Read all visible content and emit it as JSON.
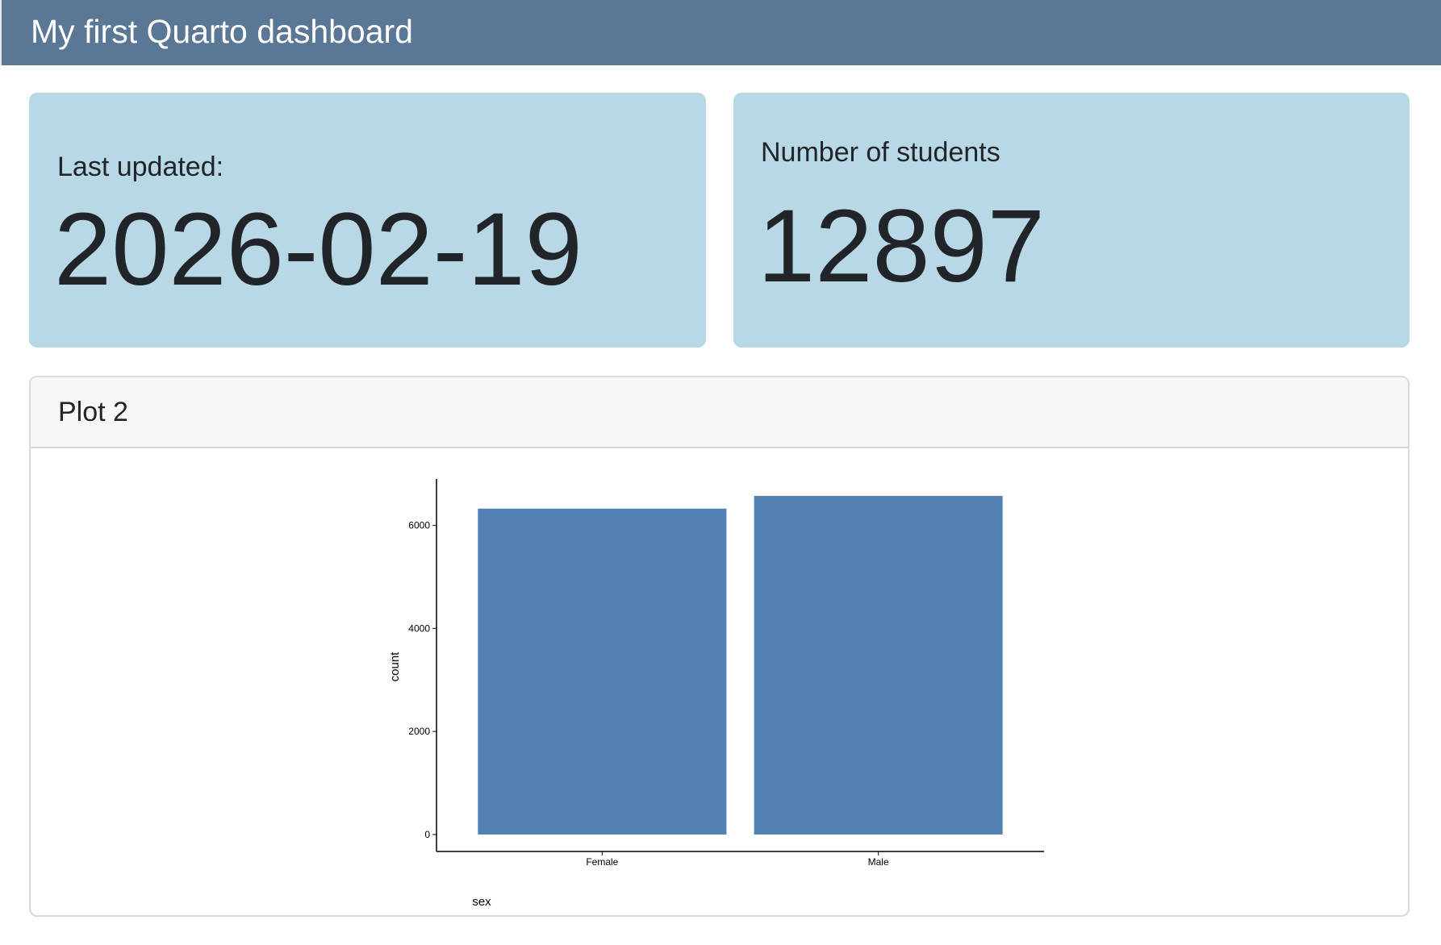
{
  "header": {
    "title": "My first Quarto dashboard"
  },
  "value_boxes": [
    {
      "label": "Last updated:",
      "value": "2026-02-19"
    },
    {
      "label": "Number of students",
      "value": 12897
    }
  ],
  "card": {
    "title": "Plot 2"
  },
  "chart_data": {
    "type": "bar",
    "categories": [
      "Female",
      "Male"
    ],
    "values": [
      6325,
      6572
    ],
    "color": "#5381b3",
    "xlabel": "sex",
    "ylabel": "count",
    "ylim": [
      -329,
      6901
    ],
    "yticks": [
      0,
      2000,
      4000,
      6000
    ]
  }
}
